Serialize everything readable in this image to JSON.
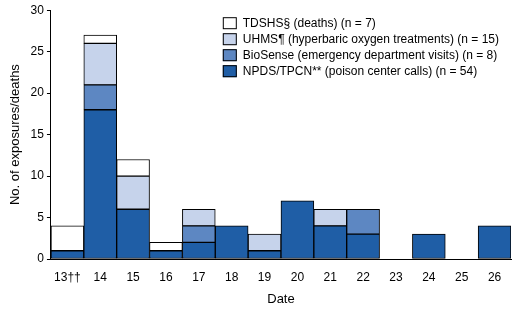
{
  "chart_data": {
    "type": "bar",
    "stacked": true,
    "grid": false,
    "legend": "upper right",
    "x_label": "Date",
    "y_label": "No. of exposures/deaths",
    "categories": [
      "13††",
      "14",
      "15",
      "16",
      "17",
      "18",
      "19",
      "20",
      "21",
      "22",
      "23",
      "24",
      "25",
      "26"
    ],
    "series": [
      {
        "name": "NPDS/TPCN** (poison center calls) (n = 54)",
        "color": "#1f5ea6",
        "values": [
          1,
          18,
          6,
          1,
          2,
          4,
          1,
          7,
          4,
          3,
          0,
          3,
          0,
          4
        ]
      },
      {
        "name": "BioSense (emergency department visits) (n = 8)",
        "color": "#5d87c2",
        "values": [
          0,
          3,
          0,
          0,
          2,
          0,
          0,
          0,
          0,
          3,
          0,
          0,
          0,
          0
        ]
      },
      {
        "name": "UHMS¶ (hyperbaric oxygen treatments) (n = 15)",
        "color": "#c6d3eb",
        "values": [
          0,
          5,
          4,
          0,
          2,
          0,
          2,
          0,
          2,
          0,
          0,
          0,
          0,
          0
        ]
      },
      {
        "name": "TDSHS§ (deaths) (n = 7)",
        "color": "#ffffff",
        "values": [
          3,
          1,
          2,
          1,
          0,
          0,
          0,
          0,
          0,
          0,
          0,
          0,
          0,
          0
        ]
      }
    ],
    "ylim": [
      0,
      30
    ],
    "yticks": [
      0,
      5,
      10,
      15,
      20,
      25,
      30
    ]
  }
}
